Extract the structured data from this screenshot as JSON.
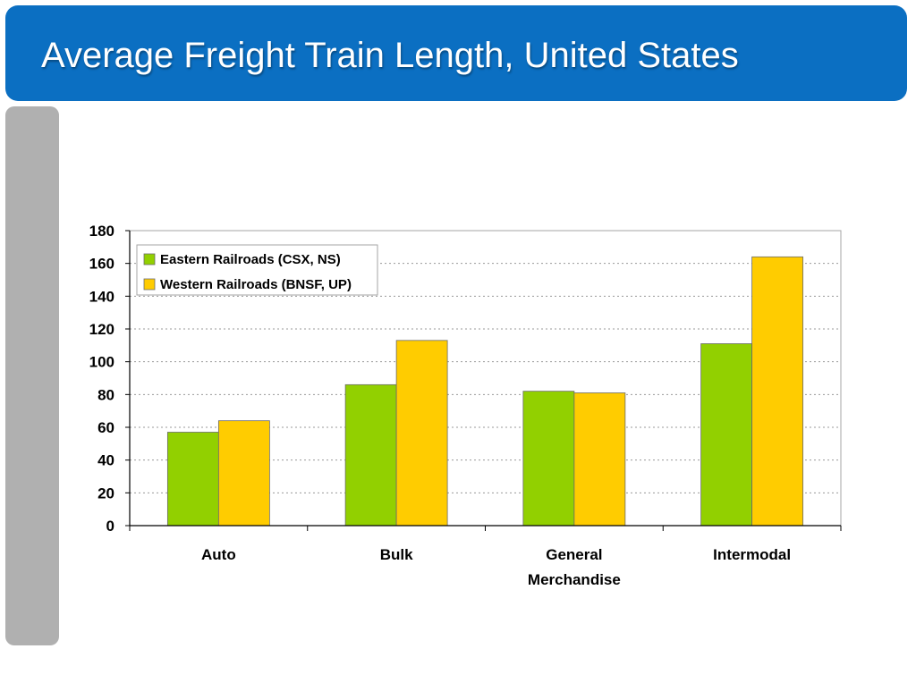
{
  "slide": {
    "title": "Average Freight Train Length, United States"
  },
  "colors": {
    "title_bar": "#0b6fc2",
    "side_bar": "#b0b0b0",
    "eastern": "#92d000",
    "western": "#ffcc00"
  },
  "chart_data": {
    "type": "bar",
    "categories": [
      "Auto",
      "Bulk",
      "General Merchandise",
      "Intermodal"
    ],
    "series": [
      {
        "name": "Eastern Railroads (CSX, NS)",
        "values": [
          57,
          86,
          82,
          111
        ],
        "color": "#92d000"
      },
      {
        "name": "Western Railroads (BNSF, UP)",
        "values": [
          64,
          113,
          81,
          164
        ],
        "color": "#ffcc00"
      }
    ],
    "title": "",
    "xlabel": "",
    "ylabel": "",
    "ylim": [
      0,
      180
    ],
    "yticks": [
      0,
      20,
      40,
      60,
      80,
      100,
      120,
      140,
      160,
      180
    ],
    "grid": true,
    "legend_position": "top-left"
  }
}
